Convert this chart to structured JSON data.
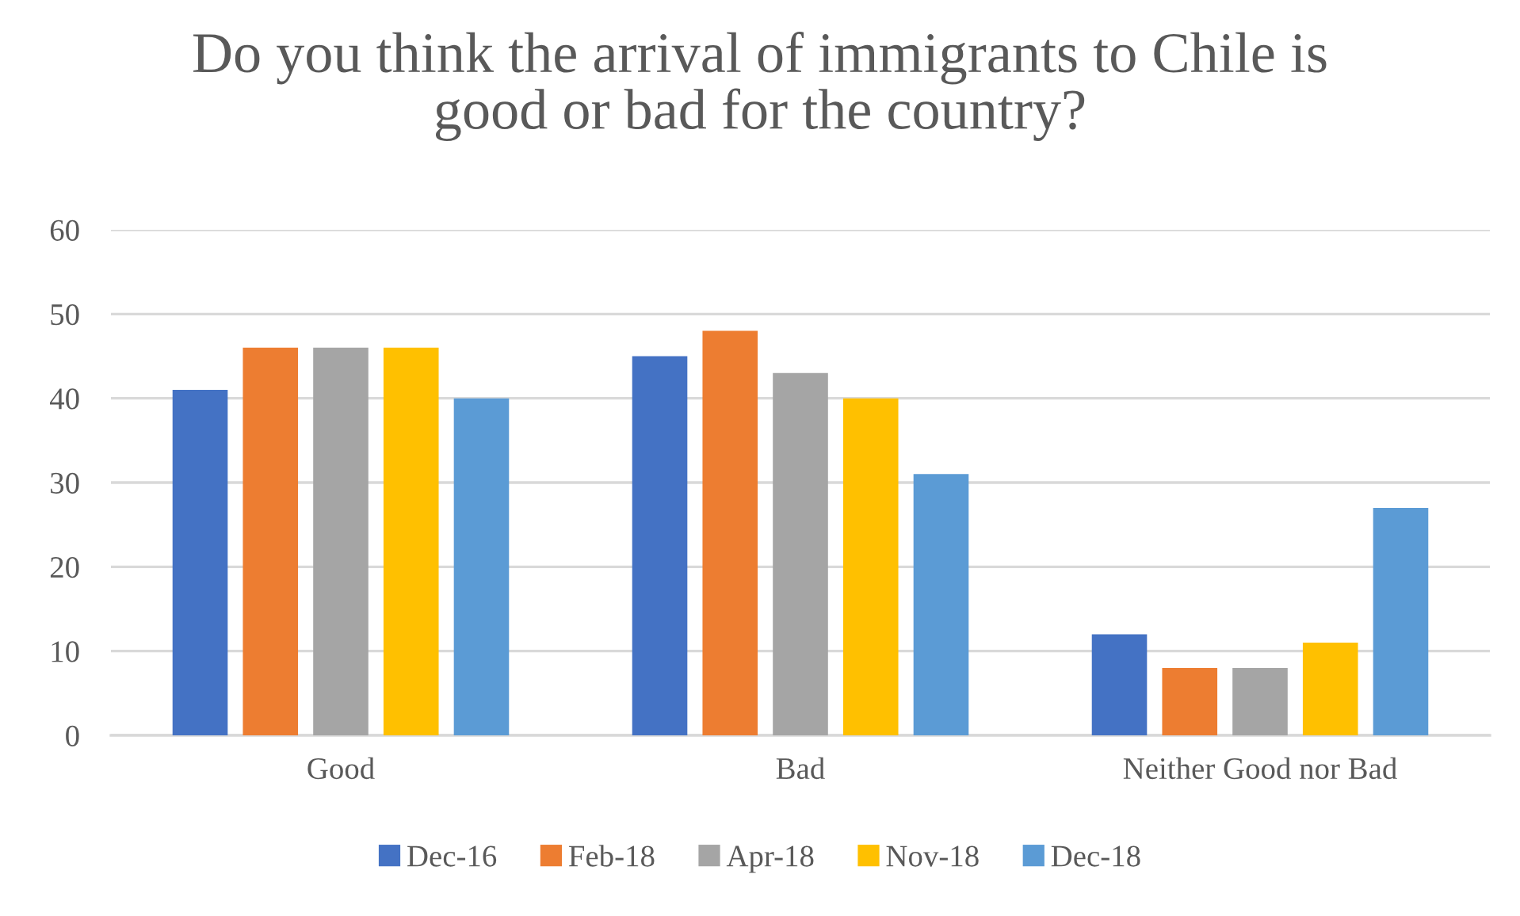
{
  "chart_data": {
    "type": "bar",
    "title": "Do you think the arrival of immigrants to Chile is good or bad for the country?",
    "categories": [
      "Good",
      "Bad",
      "Neither Good nor Bad"
    ],
    "series": [
      {
        "name": "Dec-16",
        "color": "#4472c4",
        "values": [
          41,
          45,
          12
        ]
      },
      {
        "name": "Feb-18",
        "color": "#ed7d31",
        "values": [
          46,
          48,
          8
        ]
      },
      {
        "name": "Apr-18",
        "color": "#a5a5a5",
        "values": [
          46,
          43,
          8
        ]
      },
      {
        "name": "Nov-18",
        "color": "#ffc000",
        "values": [
          46,
          40,
          11
        ]
      },
      {
        "name": "Dec-18",
        "color": "#5b9bd5",
        "values": [
          40,
          31,
          27
        ]
      }
    ],
    "ylim": [
      0,
      60
    ],
    "yticks": [
      0,
      10,
      20,
      30,
      40,
      50,
      60
    ],
    "grid": "y",
    "legend": "bottom"
  }
}
